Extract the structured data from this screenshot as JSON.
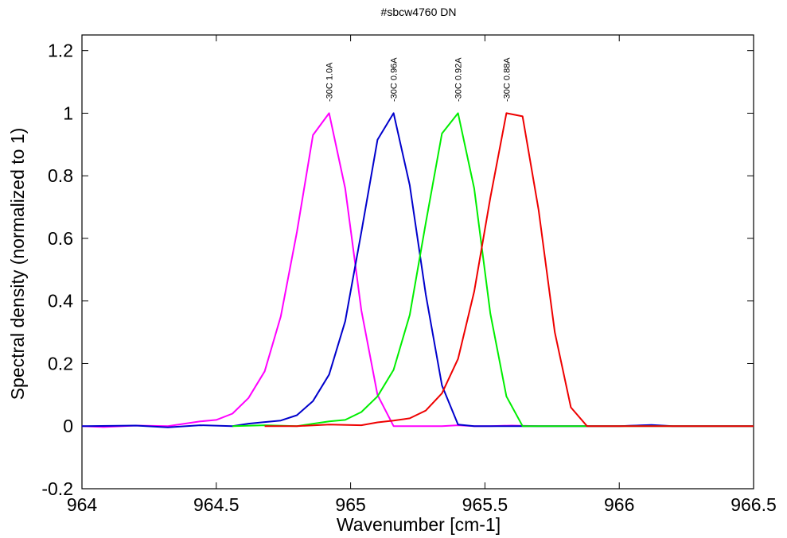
{
  "chart_data": {
    "type": "line",
    "title": "#sbcw4760 DN",
    "xlabel": "Wavenumber [cm-1]",
    "ylabel": "Spectral density (normalized to 1)",
    "xlim": [
      964,
      966.5
    ],
    "ylim": [
      -0.2,
      1.25
    ],
    "xticks": [
      964,
      964.5,
      965,
      965.5,
      966,
      966.5
    ],
    "xtick_labels": [
      "964",
      "964.5",
      "965",
      "965.5",
      "966",
      "966.5"
    ],
    "yticks": [
      -0.2,
      0,
      0.2,
      0.4,
      0.6,
      0.8,
      1,
      1.2
    ],
    "ytick_labels": [
      "-0.2",
      "0",
      "0.2",
      "0.4",
      "0.6",
      "0.8",
      "1",
      "1.2"
    ],
    "grid": false,
    "series": [
      {
        "name": "-30C 1.0A",
        "color": "#ff00ff",
        "label_x": 964.92,
        "x": [
          964.0,
          964.08,
          964.2,
          964.32,
          964.44,
          964.5,
          964.56,
          964.62,
          964.68,
          964.74,
          964.8,
          964.86,
          964.92,
          964.98,
          965.04,
          965.1,
          965.16,
          965.22,
          965.28,
          965.34,
          965.4,
          965.46,
          965.52,
          965.6,
          965.7,
          965.8,
          965.9,
          966.0,
          966.1,
          966.2,
          966.3,
          966.4,
          966.5
        ],
        "y": [
          0.0,
          -0.003,
          0.002,
          0.0,
          0.015,
          0.02,
          0.04,
          0.09,
          0.175,
          0.35,
          0.62,
          0.93,
          1.0,
          0.76,
          0.37,
          0.1,
          0.0,
          0.0,
          0.0,
          0.0,
          0.003,
          0.0,
          0.0,
          0.002,
          0.0,
          0.0,
          0.0,
          0.0,
          0.003,
          0.0,
          0.0,
          0.0,
          0.0
        ]
      },
      {
        "name": "-30C 0.96A",
        "color": "#0000cc",
        "label_x": 965.16,
        "x": [
          964.0,
          964.2,
          964.32,
          964.44,
          964.56,
          964.62,
          964.68,
          964.74,
          964.8,
          964.86,
          964.92,
          964.98,
          965.04,
          965.1,
          965.16,
          965.22,
          965.28,
          965.34,
          965.4,
          965.46,
          965.52,
          965.6,
          965.7,
          965.8,
          965.9,
          966.0,
          966.12,
          966.2,
          966.3,
          966.4,
          966.5
        ],
        "y": [
          0.0,
          0.002,
          -0.004,
          0.003,
          0.0,
          0.008,
          0.013,
          0.018,
          0.035,
          0.08,
          0.165,
          0.335,
          0.62,
          0.915,
          1.0,
          0.77,
          0.42,
          0.13,
          0.005,
          0.0,
          0.0,
          0.0,
          0.0,
          0.0,
          0.0,
          0.0,
          0.004,
          0.0,
          0.0,
          0.0,
          0.0
        ]
      },
      {
        "name": "-30C 0.92A",
        "color": "#00ee00",
        "label_x": 965.4,
        "x": [
          964.56,
          964.68,
          964.8,
          964.92,
          964.98,
          965.04,
          965.1,
          965.16,
          965.22,
          965.28,
          965.34,
          965.4,
          965.46,
          965.52,
          965.58,
          965.64,
          965.7,
          965.8,
          965.9,
          966.0,
          966.1,
          966.2,
          966.3,
          966.4,
          966.5
        ],
        "y": [
          0.0,
          0.003,
          0.0,
          0.015,
          0.02,
          0.045,
          0.095,
          0.18,
          0.355,
          0.65,
          0.935,
          1.0,
          0.76,
          0.36,
          0.095,
          0.0,
          0.0,
          0.0,
          0.0,
          0.0,
          0.0,
          0.0,
          0.0,
          0.0,
          0.0
        ]
      },
      {
        "name": "-30C 0.88A",
        "color": "#ee0000",
        "label_x": 965.58,
        "x": [
          964.68,
          964.8,
          964.92,
          965.04,
          965.1,
          965.16,
          965.22,
          965.28,
          965.34,
          965.4,
          965.46,
          965.52,
          965.58,
          965.64,
          965.7,
          965.76,
          965.82,
          965.88,
          965.94,
          966.0,
          966.1,
          966.2,
          966.3,
          966.4,
          966.5
        ],
        "y": [
          0.0,
          0.0,
          0.005,
          0.003,
          0.012,
          0.018,
          0.025,
          0.05,
          0.105,
          0.215,
          0.43,
          0.73,
          1.0,
          0.99,
          0.69,
          0.3,
          0.06,
          0.0,
          0.0,
          0.0,
          0.0,
          0.0,
          0.0,
          0.0,
          0.0
        ]
      }
    ]
  }
}
